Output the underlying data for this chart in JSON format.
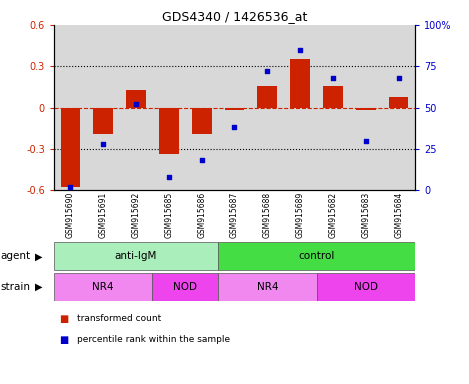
{
  "title": "GDS4340 / 1426536_at",
  "samples": [
    "GSM915690",
    "GSM915691",
    "GSM915692",
    "GSM915685",
    "GSM915686",
    "GSM915687",
    "GSM915688",
    "GSM915689",
    "GSM915682",
    "GSM915683",
    "GSM915684"
  ],
  "bar_values": [
    -0.58,
    -0.19,
    0.13,
    -0.34,
    -0.19,
    -0.02,
    0.16,
    0.35,
    0.16,
    -0.02,
    0.08
  ],
  "scatter_values": [
    2,
    28,
    52,
    8,
    18,
    38,
    72,
    85,
    68,
    30,
    68
  ],
  "bar_color": "#cc2200",
  "scatter_color": "#0000cc",
  "ylim_left": [
    -0.6,
    0.6
  ],
  "ylim_right": [
    0,
    100
  ],
  "yticks_left": [
    -0.6,
    -0.3,
    0.0,
    0.3,
    0.6
  ],
  "yticks_right": [
    0,
    25,
    50,
    75,
    100
  ],
  "yticklabels_right": [
    "0",
    "25",
    "50",
    "75",
    "100%"
  ],
  "yticklabels_left": [
    "-0.6",
    "-0.3",
    "0",
    "0.3",
    "0.6"
  ],
  "hline_color": "#cc2200",
  "dotted_lines": [
    -0.3,
    0.3
  ],
  "agent_labels": [
    {
      "label": "anti-IgM",
      "start": 0,
      "end": 5,
      "color": "#aaeebb"
    },
    {
      "label": "control",
      "start": 5,
      "end": 11,
      "color": "#44dd44"
    }
  ],
  "strain_labels": [
    {
      "label": "NR4",
      "start": 0,
      "end": 3,
      "color": "#f088f0"
    },
    {
      "label": "NOD",
      "start": 3,
      "end": 5,
      "color": "#ee44ee"
    },
    {
      "label": "NR4",
      "start": 5,
      "end": 8,
      "color": "#f088f0"
    },
    {
      "label": "NOD",
      "start": 8,
      "end": 11,
      "color": "#ee44ee"
    }
  ],
  "legend_items": [
    {
      "label": "transformed count",
      "color": "#cc2200"
    },
    {
      "label": "percentile rank within the sample",
      "color": "#0000cc"
    }
  ],
  "tick_label_gray": "#888888",
  "sample_bg_color": "#d8d8d8"
}
